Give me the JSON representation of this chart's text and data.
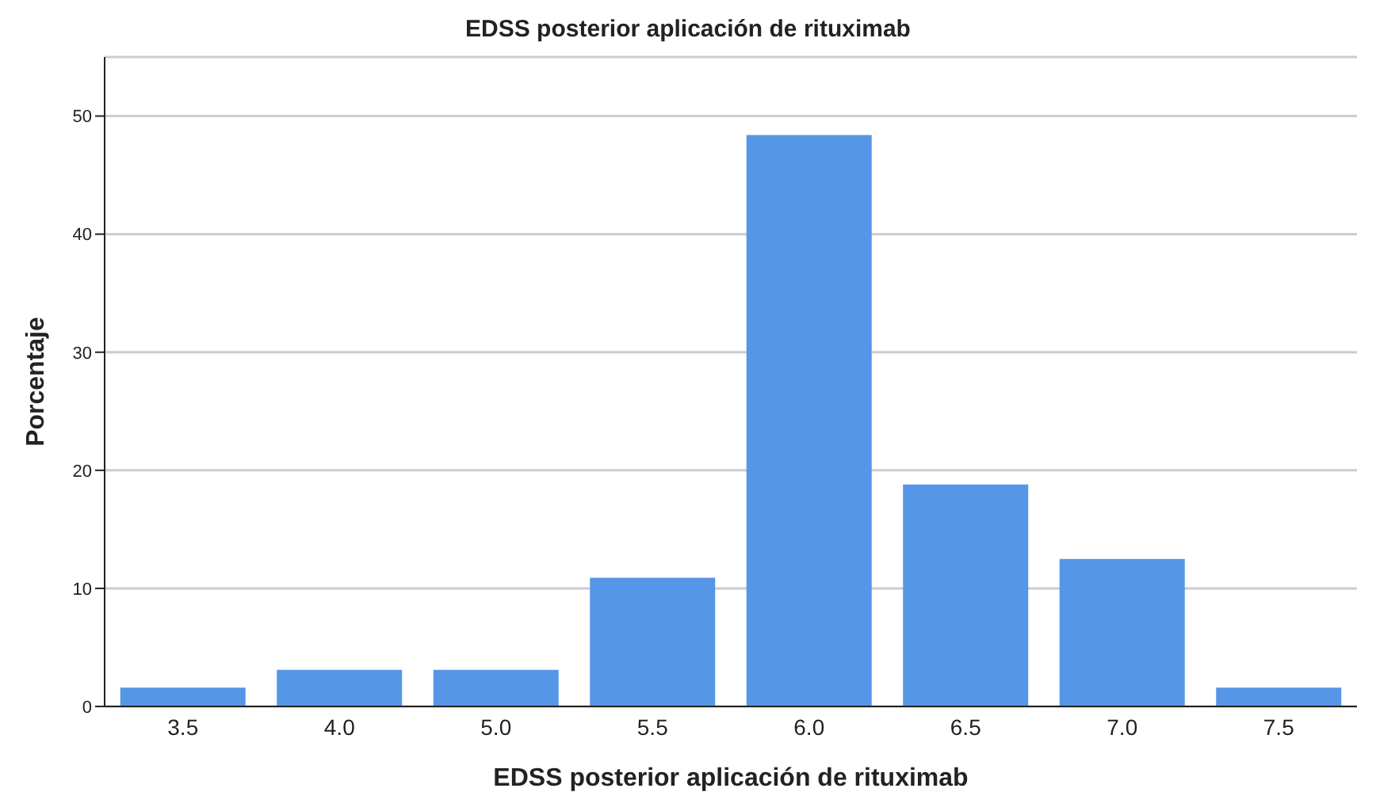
{
  "chart_data": {
    "type": "bar",
    "title": "EDSS posterior aplicación de rituximab",
    "xlabel": "EDSS posterior aplicación de rituximab",
    "ylabel": "Porcentaje",
    "categories": [
      "3.5",
      "4.0",
      "5.0",
      "5.5",
      "6.0",
      "6.5",
      "7.0",
      "7.5"
    ],
    "values": [
      1.6,
      3.1,
      3.1,
      10.9,
      48.4,
      18.8,
      12.5,
      1.6
    ],
    "color": "#5596e6",
    "ylim": [
      0,
      55
    ],
    "yticks": [
      0,
      10,
      20,
      30,
      40,
      50
    ],
    "grid": "y"
  }
}
